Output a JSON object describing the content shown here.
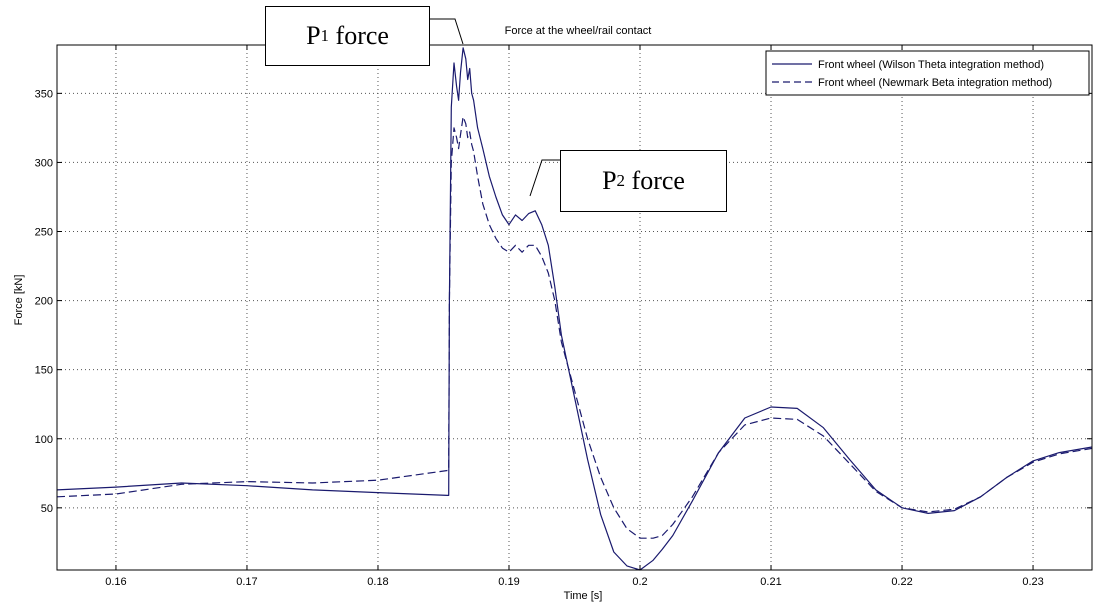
{
  "chart_data": {
    "type": "line",
    "title": "Force at the wheel/rail contact",
    "xlabel": "Time [s]",
    "ylabel": "Force [kN]",
    "xlim": [
      0.1555,
      0.2345
    ],
    "ylim": [
      5,
      385
    ],
    "xticks": [
      0.16,
      0.17,
      0.18,
      0.19,
      0.2,
      0.21,
      0.22,
      0.23
    ],
    "xtick_labels": [
      "0.16",
      "0.17",
      "0.18",
      "0.19",
      "0.2",
      "0.21",
      "0.22",
      "0.23"
    ],
    "yticks": [
      50,
      100,
      150,
      200,
      250,
      300,
      350
    ],
    "ytick_labels": [
      "50",
      "100",
      "150",
      "200",
      "250",
      "300",
      "350"
    ],
    "grid": true,
    "legend_position": "top-right",
    "series": [
      {
        "name": "Front wheel (Wilson Theta integration method)",
        "color": "#1a1a6e",
        "style": "solid",
        "x": [
          0.1555,
          0.16,
          0.165,
          0.17,
          0.175,
          0.18,
          0.1853,
          0.1854,
          0.18545,
          0.1856,
          0.1858,
          0.186,
          0.18615,
          0.1863,
          0.1865,
          0.1867,
          0.18685,
          0.187,
          0.18715,
          0.1873,
          0.1876,
          0.188,
          0.1885,
          0.189,
          0.1895,
          0.19,
          0.1905,
          0.191,
          0.1915,
          0.192,
          0.1925,
          0.193,
          0.1935,
          0.194,
          0.195,
          0.196,
          0.197,
          0.198,
          0.199,
          0.2,
          0.201,
          0.2017,
          0.2025,
          0.204,
          0.206,
          0.208,
          0.21,
          0.212,
          0.214,
          0.216,
          0.218,
          0.22,
          0.222,
          0.224,
          0.226,
          0.228,
          0.23,
          0.232,
          0.2345
        ],
        "y": [
          63,
          65,
          68,
          66,
          63,
          61,
          59,
          59,
          200,
          340,
          372,
          355,
          345,
          365,
          383,
          375,
          360,
          368,
          350,
          345,
          325,
          310,
          290,
          275,
          262,
          255,
          262,
          258,
          263,
          265,
          255,
          240,
          210,
          175,
          130,
          85,
          45,
          18,
          8,
          5,
          12,
          20,
          30,
          55,
          90,
          115,
          123,
          122,
          108,
          85,
          63,
          50,
          46,
          48,
          58,
          72,
          84,
          90,
          94
        ]
      },
      {
        "name": "Front wheel (Newmark Beta integration method)",
        "color": "#1a1a6e",
        "style": "dashed",
        "x": [
          0.1555,
          0.16,
          0.165,
          0.17,
          0.175,
          0.18,
          0.1853,
          0.1854,
          0.18545,
          0.1856,
          0.1858,
          0.186,
          0.18615,
          0.1863,
          0.1865,
          0.1867,
          0.18685,
          0.187,
          0.18715,
          0.1873,
          0.1876,
          0.188,
          0.1885,
          0.189,
          0.1895,
          0.19,
          0.1905,
          0.191,
          0.1915,
          0.192,
          0.1925,
          0.193,
          0.1935,
          0.194,
          0.195,
          0.196,
          0.197,
          0.198,
          0.199,
          0.2,
          0.201,
          0.2017,
          0.2025,
          0.204,
          0.206,
          0.208,
          0.21,
          0.212,
          0.214,
          0.216,
          0.218,
          0.22,
          0.222,
          0.224,
          0.226,
          0.228,
          0.23,
          0.232,
          0.2345
        ],
        "y": [
          58,
          60,
          67,
          69,
          68,
          70,
          77,
          77,
          200,
          300,
          325,
          318,
          310,
          320,
          333,
          328,
          318,
          322,
          313,
          308,
          290,
          270,
          255,
          245,
          238,
          235,
          240,
          235,
          240,
          240,
          232,
          220,
          200,
          170,
          135,
          100,
          72,
          50,
          35,
          28,
          28,
          30,
          38,
          58,
          90,
          110,
          115,
          114,
          102,
          82,
          62,
          50,
          47,
          49,
          58,
          72,
          83,
          89,
          93
        ]
      }
    ]
  },
  "callouts": [
    {
      "label": "P",
      "sub": "1",
      "suffix": " force"
    },
    {
      "label": "P",
      "sub": "2",
      "suffix": " force"
    }
  ]
}
